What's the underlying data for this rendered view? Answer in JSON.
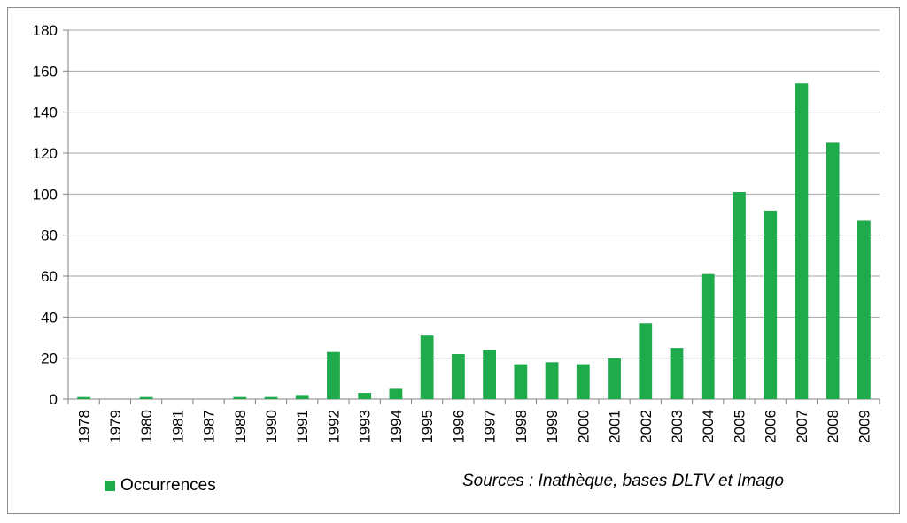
{
  "chart_data": {
    "type": "bar",
    "categories": [
      "1978",
      "1979",
      "1980",
      "1981",
      "1987",
      "1988",
      "1990",
      "1991",
      "1992",
      "1993",
      "1994",
      "1995",
      "1996",
      "1997",
      "1998",
      "1999",
      "2000",
      "2001",
      "2002",
      "2003",
      "2004",
      "2005",
      "2006",
      "2007",
      "2008",
      "2009"
    ],
    "series": [
      {
        "name": "Occurrences",
        "values": [
          1,
          0,
          1,
          0,
          0,
          1,
          1,
          2,
          23,
          3,
          5,
          31,
          22,
          24,
          17,
          18,
          17,
          20,
          37,
          25,
          61,
          101,
          92,
          154,
          125,
          87
        ],
        "color": "#1faa4c"
      }
    ],
    "ylim": [
      0,
      180
    ],
    "yticks": [
      0,
      20,
      40,
      60,
      80,
      100,
      120,
      140,
      160,
      180
    ],
    "grid": true,
    "legend_position": "bottom-left",
    "source": "Sources : Inathèque, bases DLTV et Imago"
  }
}
